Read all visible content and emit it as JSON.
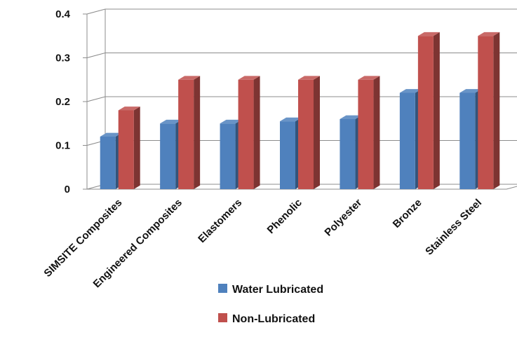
{
  "chart_data": {
    "type": "bar",
    "title": "",
    "xlabel": "",
    "ylabel": "",
    "ylim": [
      0,
      0.4
    ],
    "yticks": [
      "0",
      "0.1",
      "0.2",
      "0.3",
      "0.4"
    ],
    "grid": true,
    "legend_position": "bottom",
    "categories": [
      "SIMSITE Composites",
      "Engineered Composites",
      "Elastomers",
      "Phenolic",
      "Polyester",
      "Bronze",
      "Stainless Steel"
    ],
    "series": [
      {
        "name": "Water Lubricated",
        "color": "#4f81bd",
        "values": [
          0.12,
          0.15,
          0.15,
          0.155,
          0.16,
          0.22,
          0.22
        ]
      },
      {
        "name": "Non-Lubricated",
        "color": "#c0504d",
        "values": [
          0.18,
          0.25,
          0.25,
          0.25,
          0.25,
          0.35,
          0.35
        ]
      }
    ]
  }
}
